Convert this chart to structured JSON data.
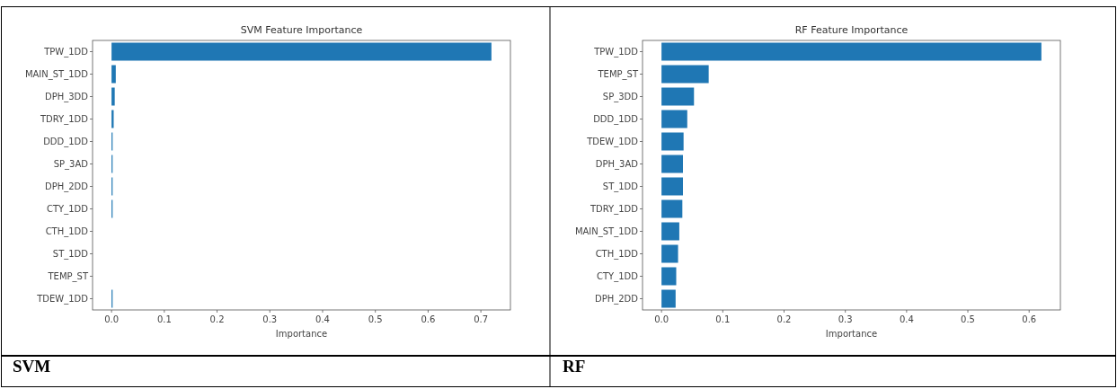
{
  "chart_data": [
    {
      "type": "bar",
      "orientation": "horizontal",
      "title": "SVM Feature Importance",
      "xlabel": "Importance",
      "annotations": [
        "SVM"
      ],
      "categories": [
        "TPW_1DD",
        "MAIN_ST_1DD",
        "DPH_3DD",
        "TDRY_1DD",
        "DDD_1DD",
        "SP_3AD",
        "DPH_2DD",
        "CTY_1DD",
        "CTH_1DD",
        "ST_1DD",
        "TEMP_ST",
        "TDEW_1DD"
      ],
      "values": [
        0.72,
        0.008,
        0.006,
        0.004,
        0.002,
        0.002,
        0.002,
        0.002,
        0,
        0,
        0,
        0.002
      ],
      "color": "#1f77b4",
      "xlim": [
        -0.036,
        0.756
      ],
      "xticks": [
        {
          "value": 0,
          "label": "0.0"
        },
        0.1,
        0.2,
        0.3,
        0.4,
        0.5,
        0.6,
        0.7
      ],
      "grid": false
    },
    {
      "type": "bar",
      "orientation": "horizontal",
      "title": "RF Feature Importance",
      "xlabel": "Importance",
      "annotations": [
        "RF"
      ],
      "categories": [
        "TPW_1DD",
        "TEMP_ST",
        "SP_3DD",
        "DDD_1DD",
        "TDEW_1DD",
        "DPH_3AD",
        "ST_1DD",
        "TDRY_1DD",
        "MAIN_ST_1DD",
        "CTH_1DD",
        "CTY_1DD",
        "DPH_2DD"
      ],
      "values": [
        0.62,
        0.077,
        0.053,
        0.042,
        0.036,
        0.035,
        0.035,
        0.034,
        0.029,
        0.027,
        0.024,
        0.023
      ],
      "color": "#1f77b4",
      "xlim": [
        -0.031,
        0.651
      ],
      "xticks": [
        {
          "value": 0,
          "label": "0.0"
        },
        0.1,
        0.2,
        0.3,
        0.4,
        0.5,
        0.6
      ],
      "grid": false
    }
  ]
}
